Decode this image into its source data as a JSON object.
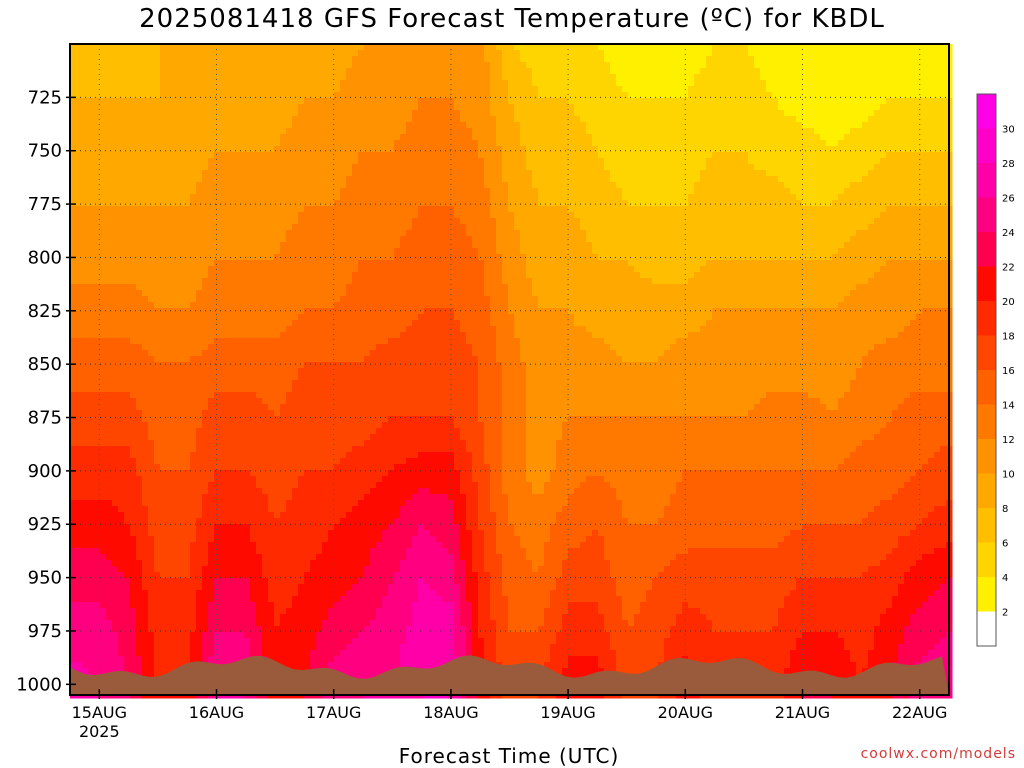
{
  "title": "2025081418 GFS Forecast Temperature (ºC) for KBDL",
  "xlabel": "Forecast Time (UTC)",
  "credit": "coolwx.com/models",
  "chart_data": {
    "type": "heatmap",
    "title": "2025081418 GFS Forecast Temperature (ºC) for KBDL",
    "xlabel": "Forecast Time (UTC)",
    "ylabel": "",
    "y_ticks": [
      "725",
      "750",
      "775",
      "800",
      "825",
      "850",
      "875",
      "900",
      "925",
      "950",
      "975",
      "1000"
    ],
    "y_tick_values": [
      725,
      750,
      775,
      800,
      825,
      850,
      875,
      900,
      925,
      950,
      975,
      1000
    ],
    "ylim": [
      1005,
      700
    ],
    "x_ticks": [
      "15AUG",
      "16AUG",
      "17AUG",
      "18AUG",
      "19AUG",
      "20AUG",
      "21AUG",
      "22AUG"
    ],
    "x_tick_year": "2025",
    "xlim_days": [
      14.75,
      22.25
    ],
    "grid": true,
    "colorbar_ticks": [
      "2",
      "4",
      "6",
      "8",
      "10",
      "12",
      "14",
      "16",
      "18",
      "20",
      "22",
      "24",
      "26",
      "28",
      "30"
    ],
    "colorbar_levels": [
      0,
      2,
      4,
      6,
      8,
      10,
      12,
      14,
      16,
      18,
      20,
      22,
      24,
      26,
      28,
      30,
      32
    ],
    "colorbar_colors": [
      "#ffffff",
      "#fff000",
      "#ffd500",
      "#ffbf00",
      "#ffa800",
      "#ff9200",
      "#ff7800",
      "#ff6000",
      "#ff4600",
      "#ff2a00",
      "#ff0a00",
      "#ff0050",
      "#ff0080",
      "#ff00a8",
      "#ff00c8",
      "#ff00e6"
    ],
    "terrain_color": "#9a5a3c",
    "pressure_levels": [
      700,
      725,
      750,
      775,
      800,
      825,
      850,
      875,
      900,
      925,
      950,
      975,
      1000
    ],
    "times": [
      14.75,
      15.0,
      15.25,
      15.5,
      15.75,
      16.0,
      16.25,
      16.5,
      16.75,
      17.0,
      17.25,
      17.5,
      17.75,
      18.0,
      18.25,
      18.5,
      18.75,
      19.0,
      19.25,
      19.5,
      19.75,
      20.0,
      20.25,
      20.5,
      20.75,
      21.0,
      21.25,
      21.5,
      21.75,
      22.0,
      22.25
    ],
    "temperature": [
      [
        7,
        7,
        7,
        8,
        8,
        8,
        9,
        9,
        9,
        9,
        10,
        11,
        11,
        11,
        11,
        6,
        5,
        5,
        4,
        3,
        3,
        3,
        4,
        4,
        3,
        2,
        2,
        2,
        2,
        2,
        2
      ],
      [
        8,
        8,
        8,
        8,
        8,
        9,
        9,
        9,
        10,
        10,
        11,
        11,
        12,
        12,
        11,
        8,
        6,
        6,
        5,
        4,
        4,
        4,
        5,
        5,
        4,
        3,
        3,
        3,
        4,
        4,
        4
      ],
      [
        9,
        9,
        9,
        9,
        9,
        10,
        10,
        10,
        11,
        11,
        12,
        12,
        13,
        13,
        12,
        9,
        7,
        7,
        6,
        5,
        5,
        5,
        6,
        6,
        5,
        5,
        4,
        5,
        6,
        6,
        6
      ],
      [
        10,
        10,
        10,
        10,
        10,
        11,
        11,
        11,
        12,
        12,
        13,
        13,
        14,
        14,
        13,
        10,
        8,
        8,
        7,
        6,
        6,
        6,
        7,
        7,
        7,
        6,
        6,
        7,
        8,
        8,
        8
      ],
      [
        11,
        11,
        11,
        11,
        11,
        12,
        12,
        12,
        13,
        13,
        14,
        14,
        15,
        15,
        14,
        11,
        9,
        9,
        8,
        8,
        7,
        7,
        8,
        8,
        8,
        8,
        8,
        9,
        10,
        10,
        10
      ],
      [
        13,
        13,
        13,
        12,
        12,
        13,
        13,
        13,
        14,
        14,
        15,
        15,
        16,
        16,
        15,
        12,
        10,
        10,
        9,
        9,
        9,
        9,
        10,
        10,
        10,
        10,
        10,
        11,
        11,
        12,
        12
      ],
      [
        15,
        15,
        15,
        14,
        14,
        15,
        15,
        15,
        16,
        16,
        16,
        17,
        17,
        17,
        16,
        13,
        11,
        11,
        11,
        10,
        10,
        11,
        11,
        11,
        11,
        11,
        11,
        12,
        13,
        13,
        13
      ],
      [
        17,
        17,
        17,
        15,
        15,
        17,
        17,
        16,
        17,
        17,
        17,
        18,
        18,
        18,
        16,
        13,
        11,
        12,
        12,
        12,
        12,
        12,
        12,
        12,
        13,
        13,
        12,
        13,
        14,
        15,
        15
      ],
      [
        19,
        19,
        19,
        16,
        16,
        18,
        18,
        17,
        18,
        18,
        19,
        20,
        21,
        21,
        17,
        13,
        11,
        13,
        14,
        13,
        13,
        14,
        14,
        14,
        14,
        14,
        14,
        15,
        15,
        16,
        17
      ],
      [
        21,
        21,
        20,
        17,
        17,
        20,
        20,
        18,
        19,
        20,
        21,
        22,
        24,
        23,
        18,
        14,
        13,
        15,
        16,
        14,
        14,
        15,
        15,
        15,
        15,
        16,
        16,
        16,
        17,
        18,
        19
      ],
      [
        23,
        23,
        22,
        18,
        18,
        22,
        22,
        19,
        20,
        21,
        22,
        24,
        26,
        25,
        19,
        15,
        14,
        17,
        17,
        15,
        16,
        17,
        17,
        17,
        17,
        18,
        18,
        18,
        19,
        21,
        22
      ],
      [
        25,
        25,
        23,
        19,
        19,
        24,
        24,
        20,
        21,
        23,
        24,
        25,
        27,
        27,
        20,
        16,
        16,
        19,
        19,
        16,
        17,
        19,
        18,
        18,
        18,
        20,
        20,
        19,
        21,
        23,
        24
      ],
      [
        27,
        26,
        24,
        20,
        20,
        26,
        26,
        21,
        22,
        25,
        26,
        26,
        28,
        28,
        21,
        17,
        18,
        21,
        21,
        17,
        18,
        21,
        19,
        19,
        19,
        22,
        22,
        20,
        22,
        25,
        25
      ]
    ]
  }
}
